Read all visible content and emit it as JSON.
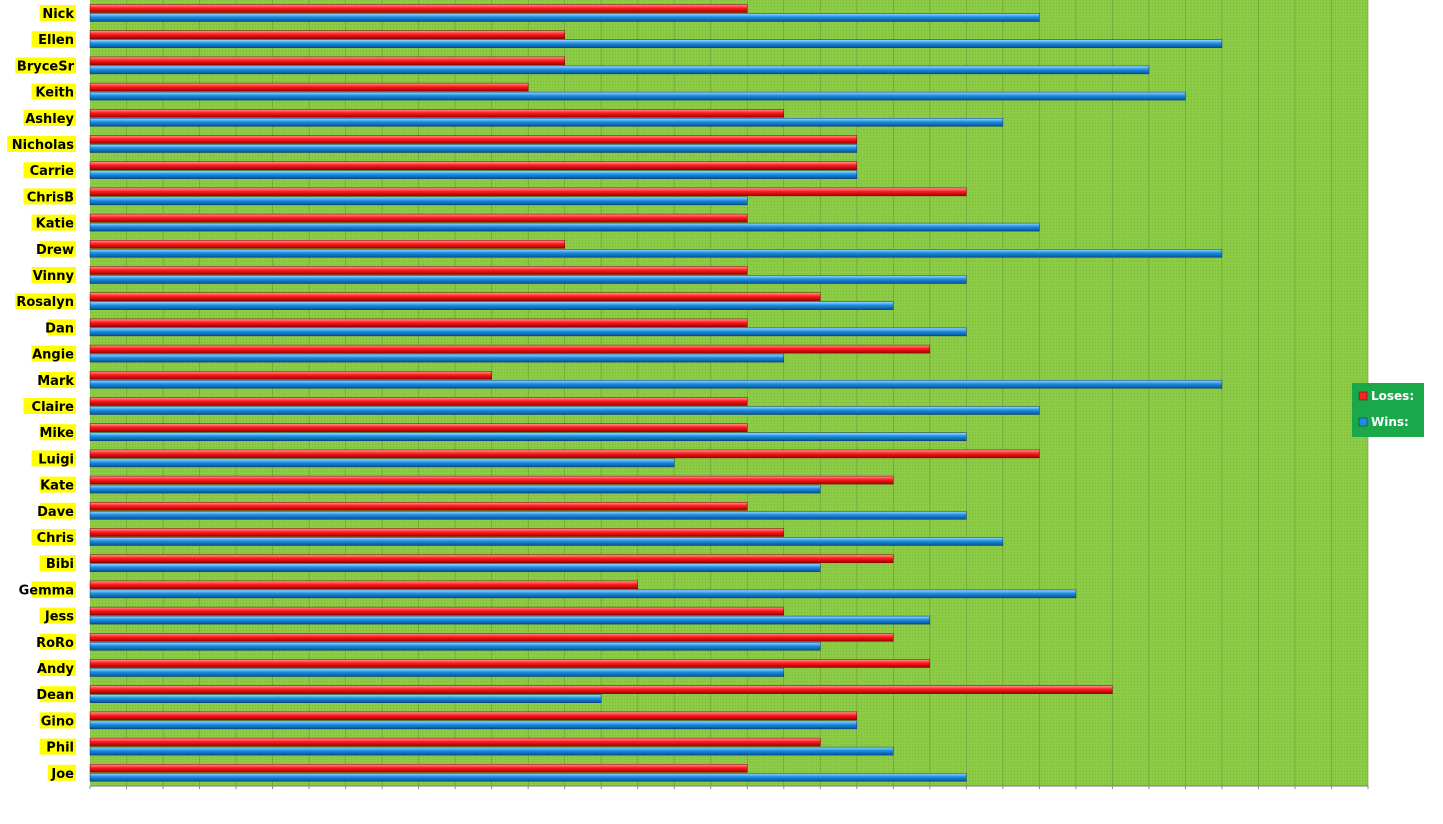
{
  "chart_data": {
    "type": "bar",
    "orientation": "horizontal",
    "categories": [
      "Nick",
      "Ellen",
      "BryceSr",
      "Keith",
      "Ashley",
      "Nicholas",
      "Carrie",
      "ChrisB",
      "Katie",
      "Drew",
      "Vinny",
      "Rosalyn",
      "Dan",
      "Angie",
      "Mark",
      "Claire",
      "Mike",
      "Luigi",
      "Kate",
      "Dave",
      "Chris",
      "Bibi",
      "Gemma",
      "Jess",
      "RoRo",
      "Andy",
      "Dean",
      "Gino",
      "Phil",
      "Joe"
    ],
    "series": [
      {
        "name": "Loses:",
        "color": "#ff2020",
        "values": [
          18,
          13,
          13,
          12,
          19,
          21,
          21,
          24,
          18,
          13,
          18,
          20,
          18,
          23,
          11,
          18,
          18,
          26,
          22,
          18,
          19,
          22,
          15,
          19,
          22,
          23,
          28,
          21,
          20,
          18
        ]
      },
      {
        "name": "Wins:",
        "color": "#1a8fe0",
        "values": [
          26,
          31,
          29,
          30,
          25,
          21,
          21,
          18,
          26,
          31,
          24,
          22,
          24,
          19,
          31,
          26,
          24,
          16,
          20,
          24,
          25,
          20,
          27,
          23,
          20,
          19,
          14,
          21,
          22,
          24
        ]
      }
    ],
    "xlim": [
      0,
      35
    ],
    "grid": true,
    "legend_position": "right",
    "plot_bg": "#8fcc4a",
    "label_bg": "#ffff00",
    "legend_bg": "#1aa84a"
  }
}
